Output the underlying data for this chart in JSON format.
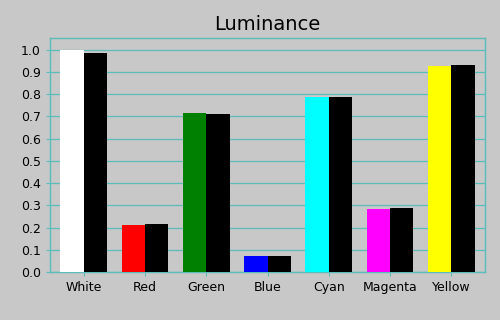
{
  "title": "Luminance",
  "categories": [
    "White",
    "Red",
    "Green",
    "Blue",
    "Cyan",
    "Magenta",
    "Yellow"
  ],
  "measured_values": [
    1.0,
    0.21,
    0.715,
    0.07,
    0.785,
    0.285,
    0.925
  ],
  "reference_values": [
    0.985,
    0.215,
    0.71,
    0.072,
    0.785,
    0.287,
    0.932
  ],
  "measured_colors": [
    "#ffffff",
    "#ff0000",
    "#008000",
    "#0000ff",
    "#00ffff",
    "#ff00ff",
    "#ffff00"
  ],
  "reference_color": "#000000",
  "background_color": "#c8c8c8",
  "plot_background_color": "#c8c8c8",
  "grid_color": "#5bbcbc",
  "ylim": [
    0.0,
    1.05
  ],
  "yticks": [
    0.0,
    0.1,
    0.2,
    0.3,
    0.4,
    0.5,
    0.6,
    0.7,
    0.8,
    0.9,
    1.0
  ],
  "title_fontsize": 14,
  "tick_fontsize": 9,
  "bar_width": 0.38,
  "figsize": [
    5.0,
    3.2
  ],
  "dpi": 100
}
